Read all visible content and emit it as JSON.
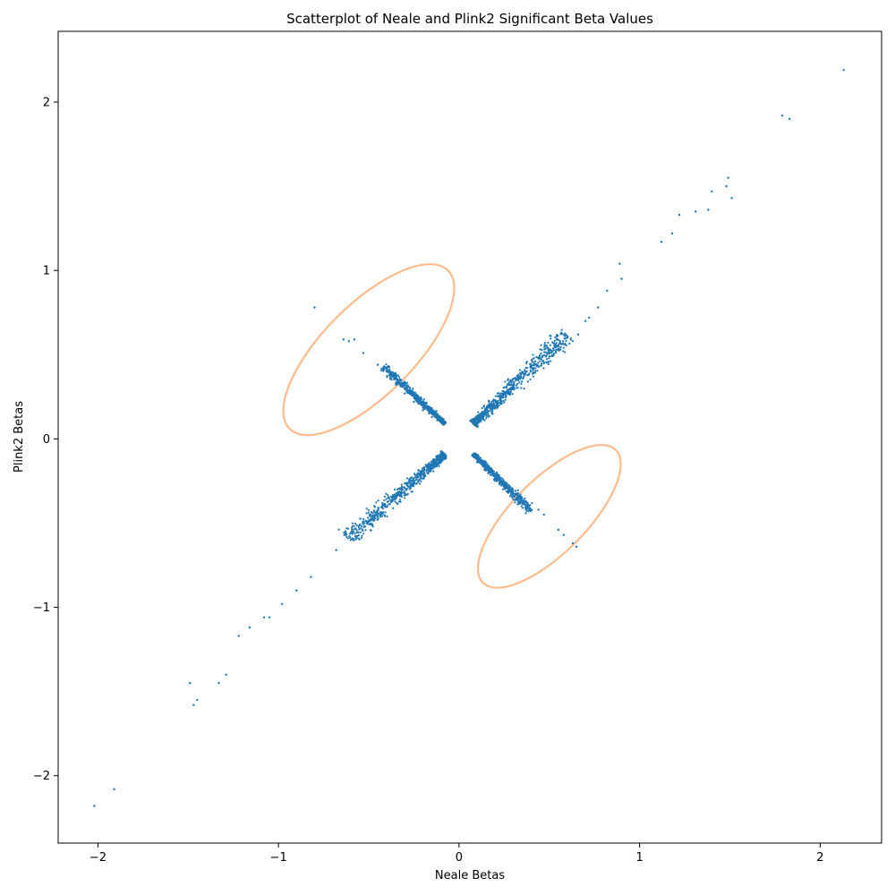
{
  "chart_data": {
    "type": "scatter",
    "title": "Scatterplot of Neale and Plink2 Significant Beta Values",
    "xlabel": "Neale Betas",
    "ylabel": "Plink2 Betas",
    "xlim": [
      -2.22,
      2.34
    ],
    "ylim": [
      -2.4,
      2.42
    ],
    "xticks": [
      -2,
      -1,
      0,
      1,
      2
    ],
    "yticks": [
      -2,
      -1,
      0,
      1,
      2
    ],
    "xtick_labels": [
      "−2",
      "−1",
      "0",
      "1",
      "2"
    ],
    "ytick_labels": [
      "−2",
      "−1",
      "0",
      "1",
      "2"
    ],
    "grid": false,
    "point_color": "#1f77b4",
    "highlight_color": "#ffbb8c",
    "series": [
      {
        "values_description": "dense point clouds",
        "x": [
          2.13,
          1.79,
          1.83,
          1.49,
          1.48,
          1.51,
          1.4,
          1.38,
          1.31,
          1.22,
          1.18,
          1.12,
          0.89,
          0.9,
          0.82,
          0.77,
          0.72,
          0.7,
          0.66,
          -0.8,
          -0.64,
          -0.61,
          -0.58,
          -0.53,
          -0.45,
          -0.4,
          -0.35,
          -0.3,
          -0.25,
          -0.2,
          -0.15,
          -0.12,
          0.1,
          0.14,
          0.2,
          0.26,
          0.32,
          0.38,
          0.44,
          0.47,
          0.55,
          0.58,
          0.63,
          0.65,
          -2.02,
          -1.91,
          -1.49,
          -1.47,
          -1.45,
          -1.33,
          -1.29,
          -1.22,
          -1.16,
          -1.08,
          -1.05,
          -0.98,
          -0.9,
          -0.82,
          -0.68,
          -0.5
        ],
        "y": [
          2.19,
          1.92,
          1.9,
          1.55,
          1.5,
          1.43,
          1.47,
          1.36,
          1.35,
          1.33,
          1.22,
          1.17,
          1.04,
          0.95,
          0.88,
          0.78,
          0.72,
          0.7,
          0.62,
          0.78,
          0.59,
          0.58,
          0.59,
          0.51,
          0.44,
          0.4,
          0.33,
          0.27,
          0.22,
          0.17,
          0.13,
          0.11,
          -0.11,
          -0.15,
          -0.21,
          -0.28,
          -0.33,
          -0.38,
          -0.42,
          -0.45,
          -0.54,
          -0.57,
          -0.62,
          -0.64,
          -2.18,
          -2.08,
          -1.45,
          -1.58,
          -1.55,
          -1.45,
          -1.4,
          -1.17,
          -1.12,
          -1.06,
          -1.06,
          -0.98,
          -0.9,
          -0.82,
          -0.66,
          -0.49
        ]
      }
    ],
    "clusters": [
      {
        "from": [
          0.08,
          0.09
        ],
        "to": [
          0.6,
          0.62
        ],
        "spread": 0.025
      },
      {
        "from": [
          -0.08,
          -0.09
        ],
        "to": [
          -0.62,
          -0.6
        ],
        "spread": 0.025
      },
      {
        "from": [
          -0.08,
          0.09
        ],
        "to": [
          -0.42,
          0.43
        ],
        "spread": 0.012
      },
      {
        "from": [
          0.08,
          -0.09
        ],
        "to": [
          0.4,
          -0.43
        ],
        "spread": 0.012
      }
    ],
    "highlight_ellipses": [
      {
        "cx": -0.5,
        "cy": 0.53,
        "rx": 0.62,
        "ry": 0.27,
        "angle_deg": -45
      },
      {
        "cx": 0.5,
        "cy": -0.46,
        "rx": 0.52,
        "ry": 0.22,
        "angle_deg": -45
      }
    ]
  }
}
